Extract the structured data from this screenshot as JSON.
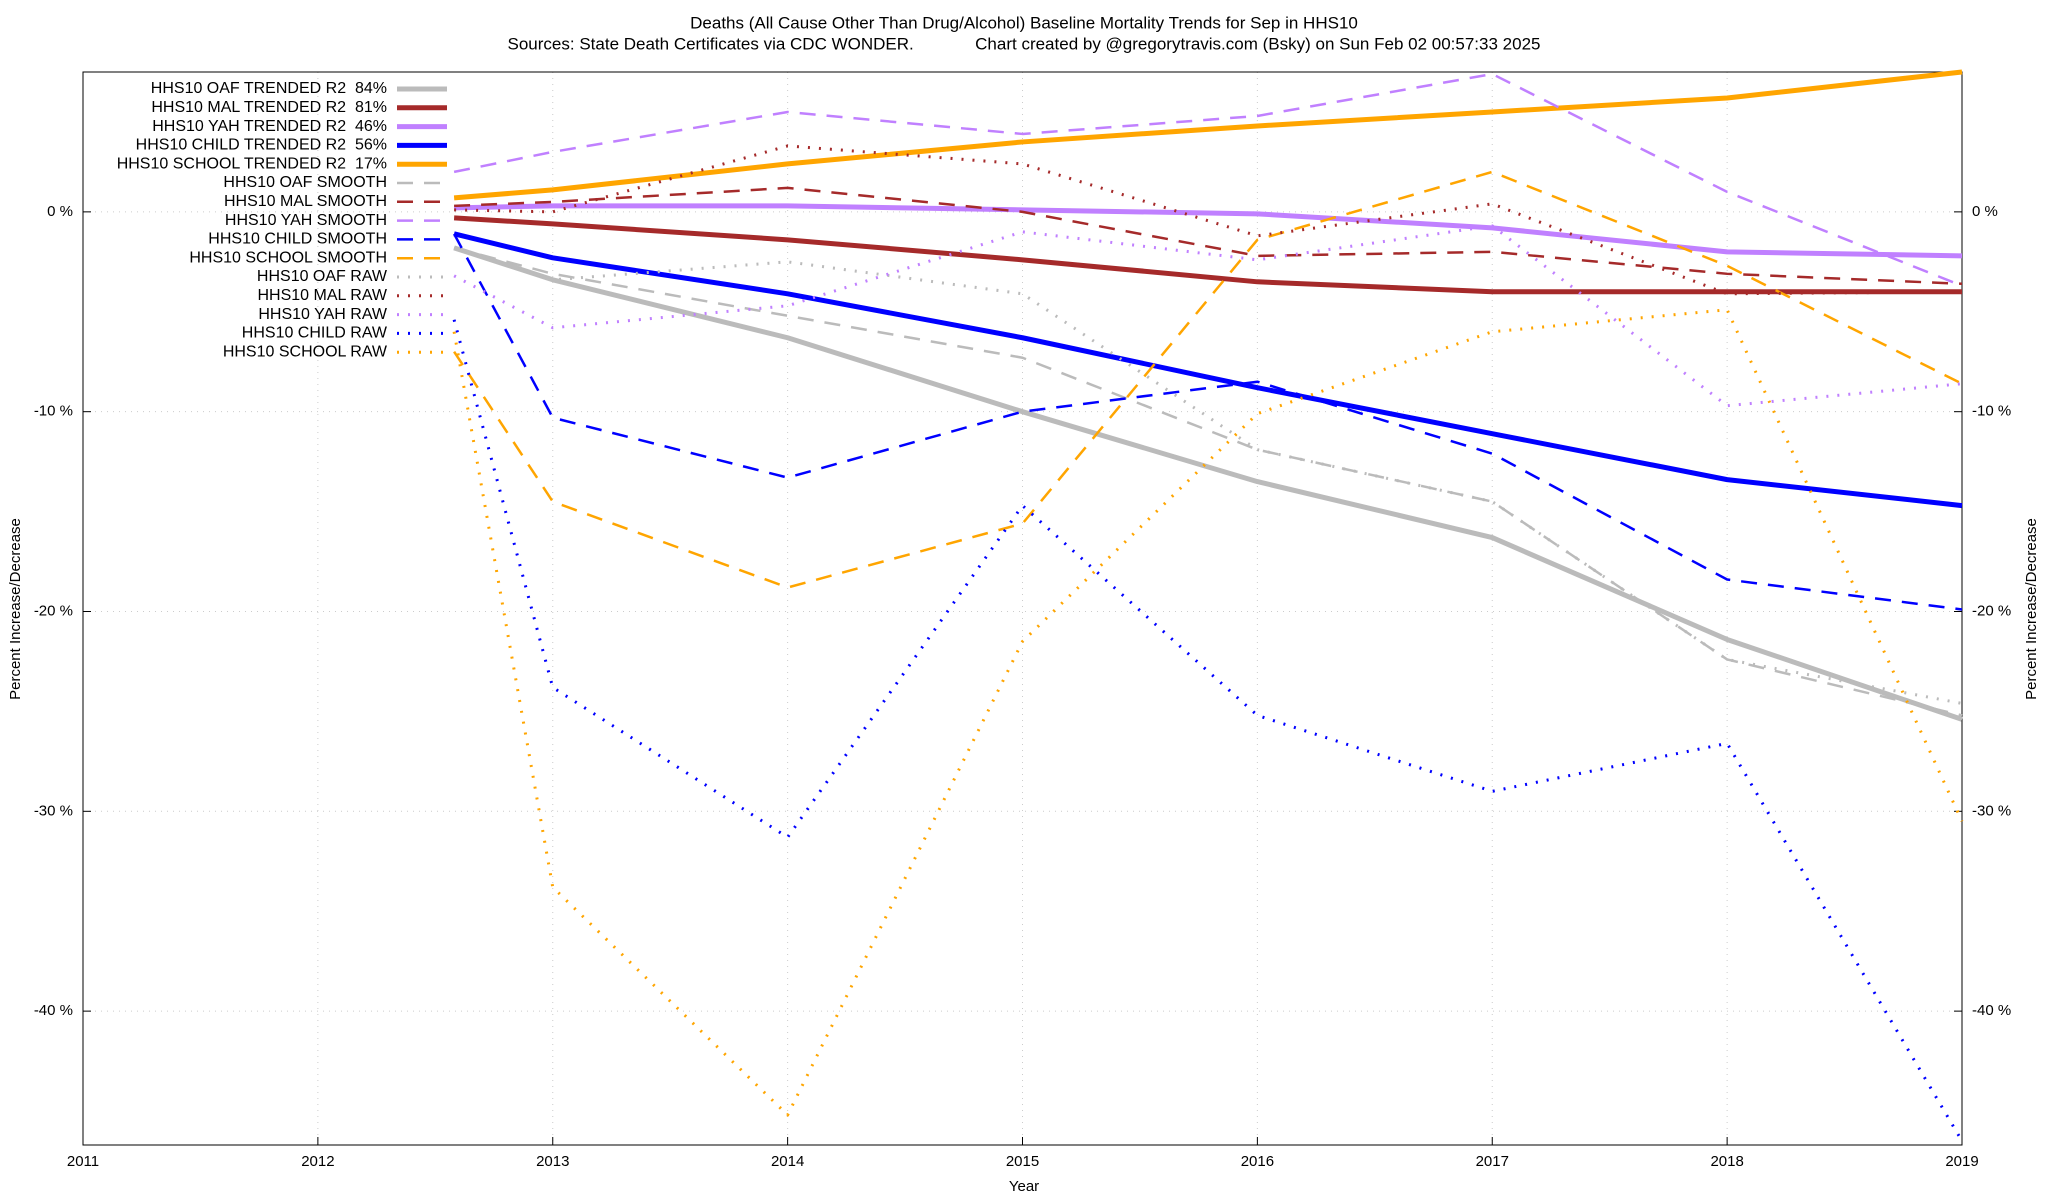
{
  "chart_data": {
    "type": "line",
    "title": "Deaths (All Cause Other Than Drug/Alcohol)  Baseline Mortality Trends for Sep in HHS10",
    "subtitle": "Sources: State Death Certificates via CDC WONDER.             Chart created by @gregorytravis.com (Bsky) on Sun Feb 02 00:57:33 2025",
    "x_label": "Year",
    "y_label": "Percent Increase/Decrease",
    "y2_label": "Percent Increase/Decrease",
    "x": [
      2012.58,
      2013,
      2014,
      2015,
      2016,
      2017,
      2018,
      2019
    ],
    "xlim": [
      2011,
      2019
    ],
    "xticks": [
      2011,
      2012,
      2013,
      2014,
      2015,
      2016,
      2017,
      2018,
      2019
    ],
    "ylim": [
      -46.7,
      7
    ],
    "yticks": [
      {
        "value": -40,
        "label": "-40 %"
      },
      {
        "value": -30,
        "label": "-30 %"
      },
      {
        "value": -20,
        "label": "-20 %"
      },
      {
        "value": -10,
        "label": "-10 %"
      },
      {
        "value": 0,
        "label": "0 %"
      }
    ],
    "y2lim": [
      -46.7,
      7
    ],
    "y2ticks": [
      {
        "value": -40,
        "label": "-40 %"
      },
      {
        "value": -30,
        "label": "-30 %"
      },
      {
        "value": -20,
        "label": "-20 %"
      },
      {
        "value": -10,
        "label": "-10 %"
      },
      {
        "value": 0,
        "label": "0 %"
      }
    ],
    "grid": true,
    "legend": "top-left",
    "series": [
      {
        "name": "HHS10 OAF TRENDED R2  84%",
        "color": "#bbbbbb",
        "style": "solid",
        "values": [
          -1.8,
          -3.4,
          -6.3,
          -10.0,
          -13.5,
          -16.3,
          -21.4,
          -25.4
        ]
      },
      {
        "name": "HHS10 MAL TRENDED R2  81%",
        "color": "#a52a2a",
        "style": "solid",
        "values": [
          -0.3,
          -0.6,
          -1.4,
          -2.4,
          -3.5,
          -4.0,
          -4.0,
          -4.0
        ]
      },
      {
        "name": "HHS10 YAH TRENDED R2  46%",
        "color": "#c080ff",
        "style": "solid",
        "values": [
          0.2,
          0.3,
          0.3,
          0.1,
          -0.1,
          -0.8,
          -2.0,
          -2.2
        ]
      },
      {
        "name": "HHS10 CHILD TRENDED R2  56%",
        "color": "#0000ff",
        "style": "solid",
        "values": [
          -1.1,
          -2.3,
          -4.1,
          -6.3,
          -8.8,
          -11.1,
          -13.4,
          -14.7
        ]
      },
      {
        "name": "HHS10 SCHOOL TRENDED R2  17%",
        "color": "#ffa500",
        "style": "solid",
        "values": [
          0.7,
          1.1,
          2.4,
          3.5,
          4.3,
          5.0,
          5.7,
          7.0
        ]
      },
      {
        "name": "HHS10 OAF SMOOTH",
        "color": "#bbbbbb",
        "style": "dashed",
        "values": [
          -1.8,
          -3.1,
          -5.2,
          -7.3,
          -11.9,
          -14.5,
          -22.4,
          -25.2
        ]
      },
      {
        "name": "HHS10 MAL SMOOTH",
        "color": "#a52a2a",
        "style": "dashed",
        "values": [
          0.3,
          0.5,
          1.2,
          0.0,
          -2.2,
          -2.0,
          -3.1,
          -3.6
        ]
      },
      {
        "name": "HHS10 YAH SMOOTH",
        "color": "#c080ff",
        "style": "dashed",
        "values": [
          2.0,
          3.0,
          5.0,
          3.9,
          4.8,
          6.9,
          1.0,
          -3.7
        ]
      },
      {
        "name": "HHS10 CHILD SMOOTH",
        "color": "#0000ff",
        "style": "dashed",
        "values": [
          -1.1,
          -10.3,
          -13.3,
          -10.0,
          -8.5,
          -12.1,
          -18.4,
          -19.9
        ]
      },
      {
        "name": "HHS10 SCHOOL SMOOTH",
        "color": "#ffa500",
        "style": "dashed",
        "values": [
          -7.0,
          -14.5,
          -18.8,
          -15.6,
          -1.4,
          2.0,
          -2.7,
          -8.6
        ]
      },
      {
        "name": "HHS10 OAF RAW",
        "color": "#bbbbbb",
        "style": "dotted",
        "values": [
          -1.8,
          -3.4,
          -2.5,
          -4.1,
          -11.9,
          -14.5,
          -22.4,
          -24.6
        ]
      },
      {
        "name": "HHS10 MAL RAW",
        "color": "#a52a2a",
        "style": "dotted",
        "values": [
          0.1,
          0.0,
          3.3,
          2.4,
          -1.2,
          0.4,
          -4.1,
          -4.0
        ]
      },
      {
        "name": "HHS10 YAH RAW",
        "color": "#c080ff",
        "style": "dotted",
        "values": [
          -3.2,
          -5.8,
          -4.7,
          -1.0,
          -2.4,
          -0.7,
          -9.7,
          -8.6
        ]
      },
      {
        "name": "HHS10 CHILD RAW",
        "color": "#0000ff",
        "style": "dotted",
        "values": [
          -5.4,
          -23.8,
          -31.3,
          -14.7,
          -25.2,
          -29.0,
          -26.6,
          -46.5
        ]
      },
      {
        "name": "HHS10 SCHOOL RAW",
        "color": "#ffa500",
        "style": "dotted",
        "values": [
          -6.0,
          -33.8,
          -45.2,
          -21.5,
          -10.1,
          -6.0,
          -4.9,
          -30.5
        ]
      }
    ]
  }
}
